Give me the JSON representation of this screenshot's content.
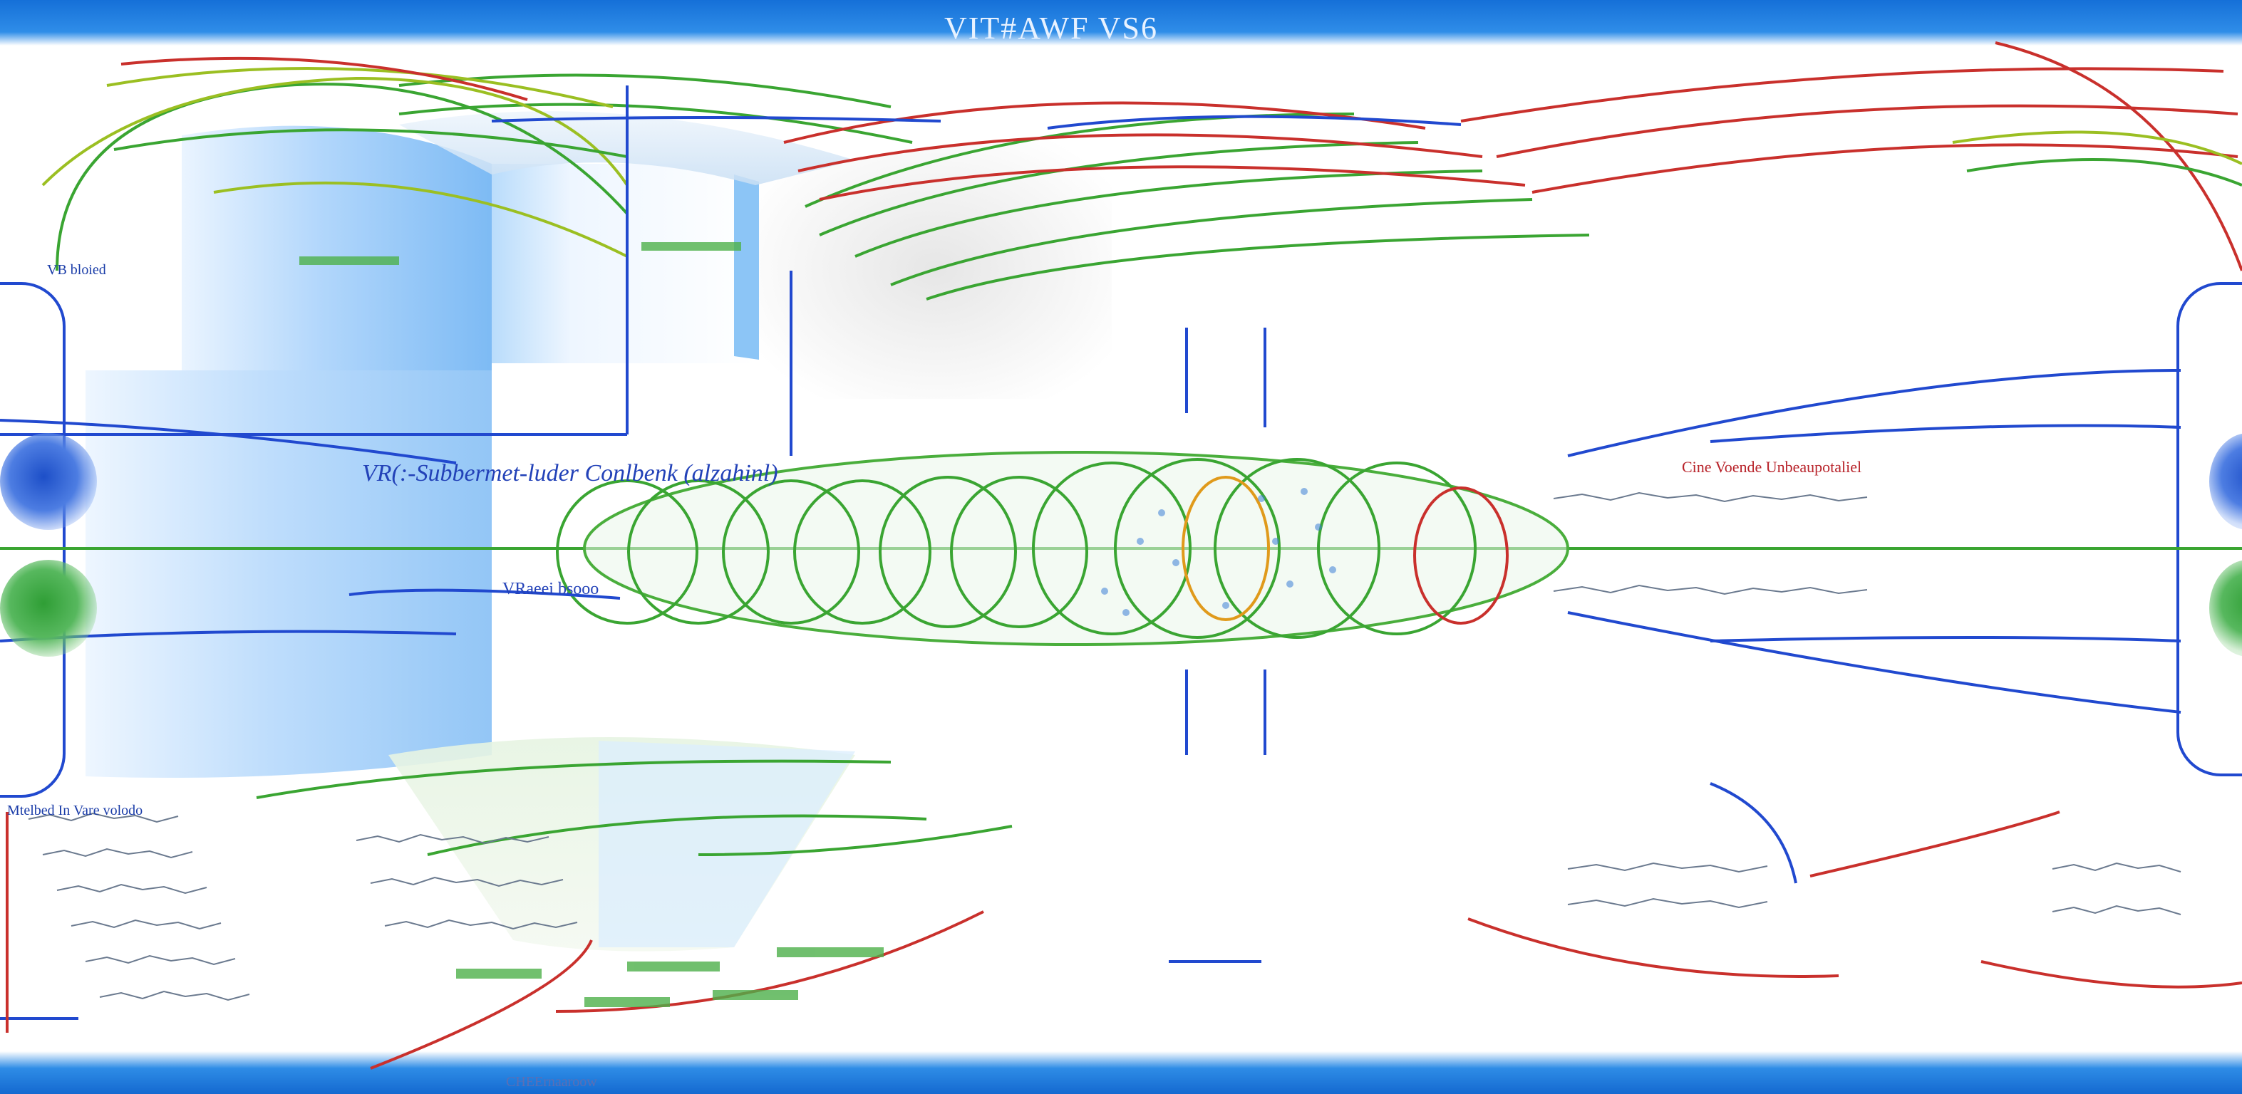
{
  "header": {
    "title": "VIT#AWF VS6"
  },
  "labels": {
    "left_top": "VB bloied",
    "mid_left": "VR(:-Subbermet-luder Conlbenk (alzahinl)",
    "lower_left": "VRaeei bsooo",
    "bottom_left": "Mtelbed In Vare volodo",
    "right": "Cine Voende Unbeaupotaliel",
    "bottom": "CHEErnaaroow"
  },
  "colors": {
    "brand_blue": "#1d6fd6",
    "arrow_blue": "#2149cf",
    "arrow_green": "#3aa532",
    "arrow_red": "#c9302c",
    "arrow_olive": "#9bbf22",
    "room_blue": "#7db8f2"
  },
  "icons": {
    "left_orbs": [
      "blue-orb",
      "green-orb"
    ],
    "right_orbs": [
      "blue-orb",
      "green-orb"
    ]
  }
}
